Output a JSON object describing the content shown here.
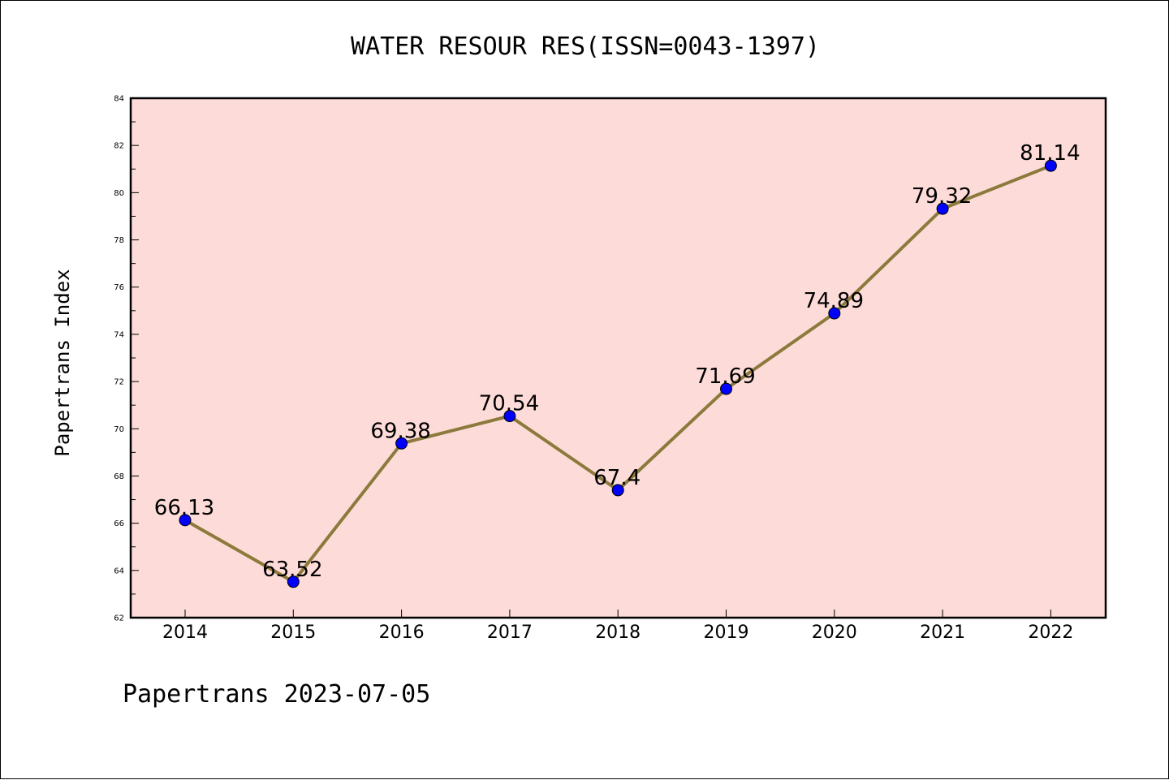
{
  "chart_data": {
    "type": "line",
    "title": "WATER RESOUR RES(ISSN=0043-1397)",
    "ylabel": "Papertrans Index",
    "xlabel": "",
    "categories": [
      "2014",
      "2015",
      "2016",
      "2017",
      "2018",
      "2019",
      "2020",
      "2021",
      "2022"
    ],
    "series": [
      {
        "values": [
          66.13,
          63.52,
          69.38,
          70.54,
          67.4,
          71.69,
          74.89,
          79.32,
          81.14
        ],
        "labels": [
          "66.13",
          "63.52",
          "69.38",
          "70.54",
          "67.4",
          "71.69",
          "74.89",
          "79.32",
          "81.14"
        ]
      }
    ],
    "ylim": [
      62,
      84
    ],
    "yticks": [
      "62",
      "64",
      "66",
      "68",
      "70",
      "72",
      "74",
      "76",
      "78",
      "80",
      "82",
      "84"
    ],
    "grid": false,
    "colors": {
      "plot_background": "#fddbd8",
      "line": "#8c7a3c",
      "marker": "#0000ff"
    }
  },
  "footer": "Papertrans 2023-07-05"
}
